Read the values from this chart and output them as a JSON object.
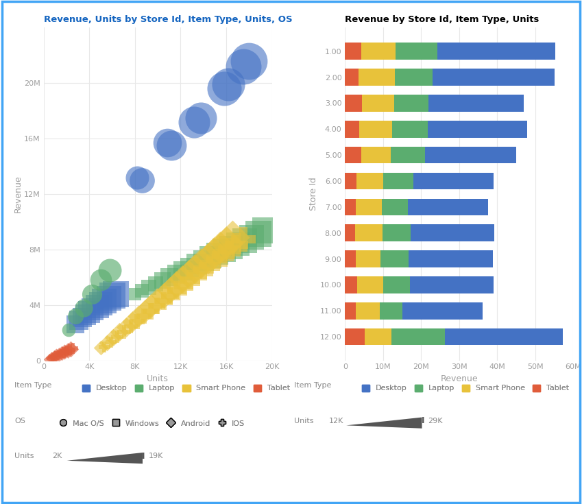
{
  "scatter_title": "Revenue, Units by Store Id, Item Type, Units, OS",
  "bar_title": "Revenue by Store Id, Item Type, Units",
  "scatter_xlabel": "Units",
  "scatter_ylabel": "Revenue",
  "bar_xlabel": "Revenue",
  "bar_ylabel": "Store Id",
  "colors": {
    "Desktop": "#4472C4",
    "Laptop": "#5BAD6F",
    "SmartPhone": "#E8C23A",
    "Tablet": "#E05C3A"
  },
  "scatter_xlim": [
    0,
    20000
  ],
  "scatter_ylim": [
    0,
    24000000
  ],
  "scatter_xticks": [
    0,
    4000,
    8000,
    12000,
    16000,
    20000
  ],
  "scatter_xtick_labels": [
    "0",
    "4K",
    "8K",
    "12K",
    "16K",
    "20K"
  ],
  "scatter_yticks": [
    0,
    4000000,
    8000000,
    12000000,
    16000000,
    20000000
  ],
  "scatter_ytick_labels": [
    "0",
    "4M",
    "8M",
    "12M",
    "16M",
    "20M"
  ],
  "bar_xlim": [
    0,
    60000000
  ],
  "bar_xticks": [
    0,
    10000000,
    20000000,
    30000000,
    40000000,
    50000000,
    60000000
  ],
  "bar_xtick_labels": [
    "0",
    "10M",
    "20M",
    "30M",
    "40M",
    "50M",
    "60M"
  ],
  "store_ids": [
    "1.00",
    "2.00",
    "3.00",
    "4.00",
    "5.00",
    "6.00",
    "7.00",
    "8.00",
    "9.00",
    "10.00",
    "11.00",
    "12.00"
  ],
  "bar_data": {
    "Tablet": [
      4200000,
      3600000,
      4500000,
      3800000,
      4200000,
      3000000,
      2800000,
      2600000,
      2800000,
      3200000,
      2900000,
      5200000
    ],
    "SmartPhone": [
      9000000,
      9500000,
      8500000,
      8500000,
      7800000,
      7000000,
      6800000,
      7200000,
      6500000,
      6800000,
      6200000,
      7000000
    ],
    "Laptop": [
      11000000,
      10000000,
      9000000,
      9500000,
      9000000,
      8000000,
      7000000,
      7500000,
      7500000,
      7000000,
      6000000,
      14000000
    ],
    "Desktop": [
      31000000,
      32000000,
      25000000,
      26000000,
      24000000,
      21000000,
      21000000,
      22000000,
      22000000,
      22000000,
      21000000,
      31000000
    ]
  },
  "background_color": "#ffffff",
  "title_color": "#1565C0",
  "axis_label_color": "#9E9E9E",
  "tick_color": "#9E9E9E",
  "grid_color": "#E8E8E8",
  "border_color": "#42A5F5",
  "legend_label_color": "#888888"
}
